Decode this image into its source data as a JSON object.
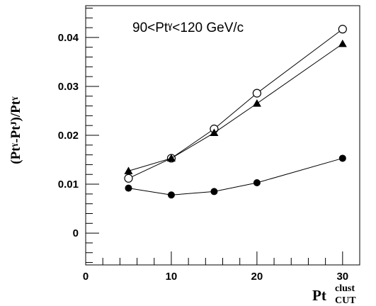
{
  "chart_data": {
    "type": "scatter",
    "annotation": "90<Ptˠ<120 GeV/c",
    "ylabel": "(Ptˠ-Ptᴶ)/Ptˠ",
    "xlabel": "Pt",
    "xlabel_super": "clust",
    "xlabel_sub": "CUT",
    "xlim": [
      0,
      32
    ],
    "ylim": [
      -0.0065,
      0.0465
    ],
    "xticks": [
      0,
      10,
      20,
      30
    ],
    "xtick_labels": [
      "0",
      "10",
      "20",
      "30"
    ],
    "yticks": [
      0,
      0.01,
      0.02,
      0.03,
      0.04
    ],
    "ytick_labels": [
      "0",
      "0.01",
      "0.02",
      "0.03",
      "0.04"
    ],
    "grid": false,
    "series": [
      {
        "marker": "open-circle",
        "x": [
          5,
          10,
          15,
          20,
          30
        ],
        "y": [
          0.0112,
          0.0153,
          0.0213,
          0.0286,
          0.0417
        ]
      },
      {
        "marker": "filled-triangle",
        "x": [
          5,
          10,
          15,
          20,
          30
        ],
        "y": [
          0.0127,
          0.0153,
          0.0205,
          0.0265,
          0.0387
        ]
      },
      {
        "marker": "filled-circle",
        "x": [
          5,
          10,
          15,
          20,
          30
        ],
        "y": [
          0.0092,
          0.0078,
          0.0085,
          0.0103,
          0.0153
        ]
      }
    ]
  }
}
